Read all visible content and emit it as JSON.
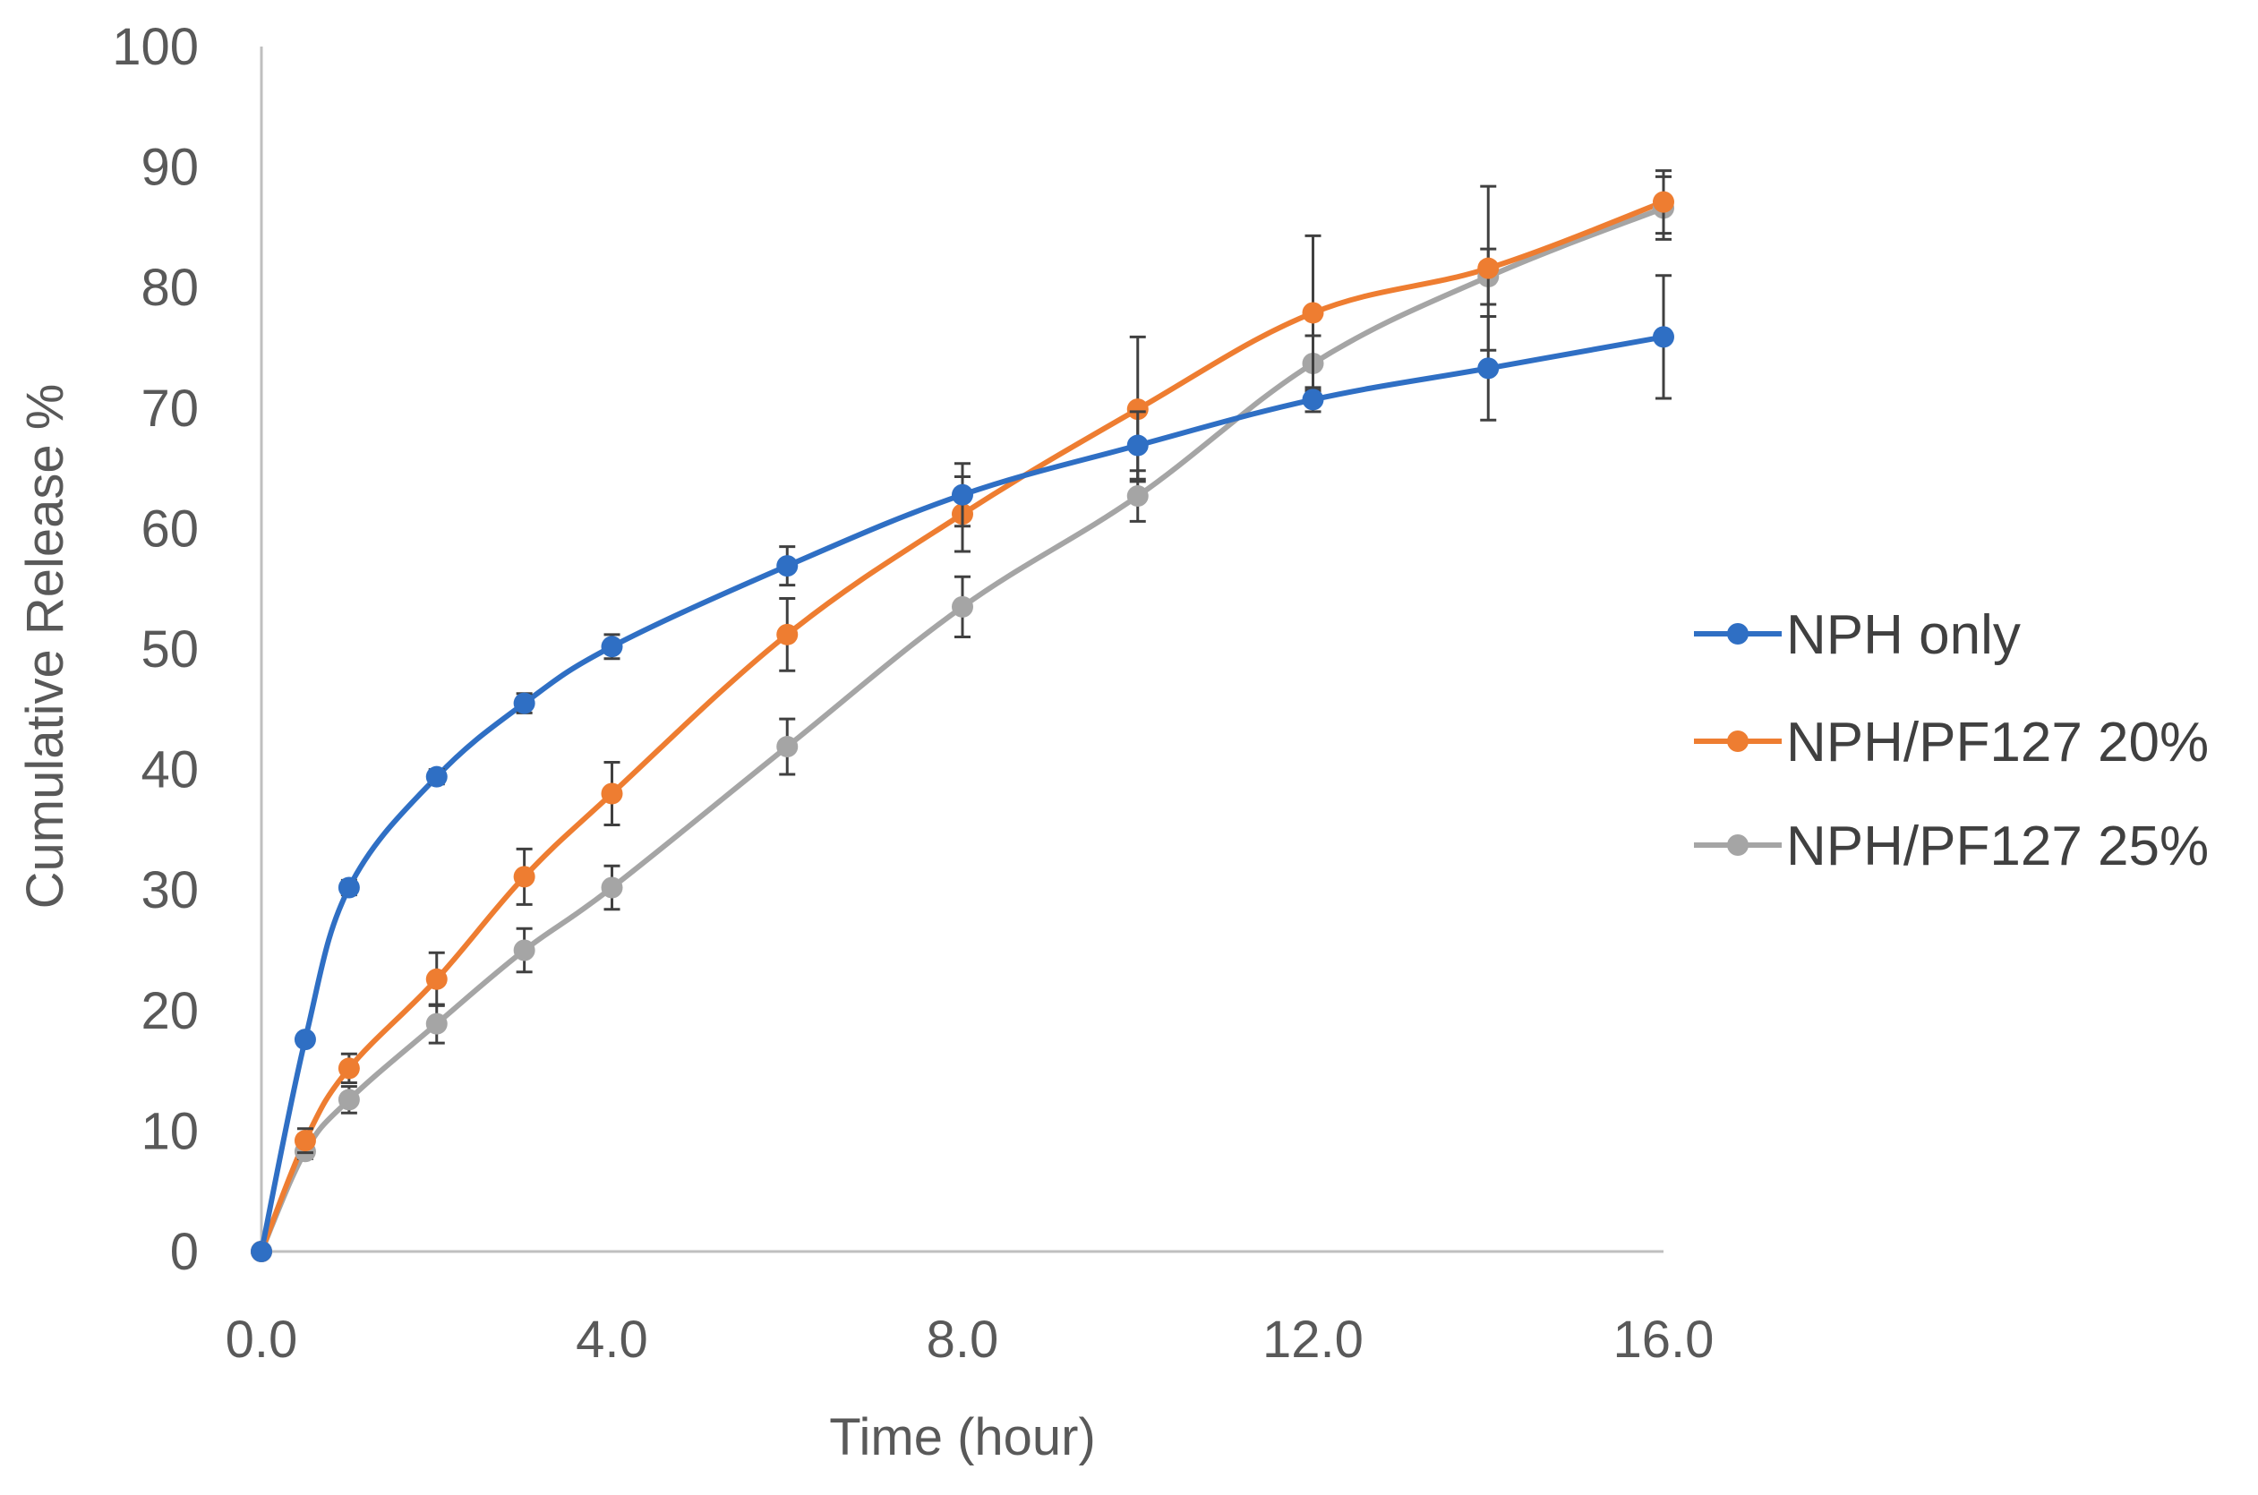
{
  "chart_data": {
    "type": "line",
    "title": "",
    "xlabel": "Time (hour)",
    "ylabel": "Cumulative Release %",
    "xlim": [
      0,
      16
    ],
    "ylim": [
      0,
      100
    ],
    "x_ticks": [
      0,
      4,
      8,
      12,
      16
    ],
    "x_tick_labels": [
      "0.0",
      "4.0",
      "8.0",
      "12.0",
      "16.0"
    ],
    "y_ticks": [
      0,
      10,
      20,
      30,
      40,
      50,
      60,
      70,
      80,
      90,
      100
    ],
    "y_tick_labels": [
      "0",
      "10",
      "20",
      "30",
      "40",
      "50",
      "60",
      "70",
      "80",
      "90",
      "100"
    ],
    "grid": false,
    "legend_position": "right",
    "x": [
      0,
      0.5,
      1,
      2,
      3,
      4,
      6,
      8,
      10,
      12,
      14,
      16
    ],
    "series": [
      {
        "name": "NPH only",
        "color": "#2F6FC4",
        "values": [
          0,
          17.6,
          30.2,
          39.4,
          45.5,
          50.2,
          56.9,
          62.8,
          66.9,
          70.7,
          73.3,
          75.9
        ],
        "errors": [
          0,
          0.4,
          0.6,
          0.6,
          0.8,
          1.0,
          1.6,
          2.6,
          2.8,
          1.0,
          4.3,
          5.1
        ]
      },
      {
        "name": "NPH/PF127 20%",
        "color": "#EE7D31",
        "values": [
          0,
          9.2,
          15.2,
          22.6,
          31.1,
          38.0,
          51.2,
          61.2,
          69.9,
          77.9,
          81.6,
          87.1
        ],
        "errors": [
          0,
          1.0,
          1.2,
          2.2,
          2.3,
          2.6,
          3.0,
          3.1,
          6.0,
          6.4,
          6.8,
          2.6
        ]
      },
      {
        "name": "NPH/PF127 25%",
        "color": "#A5A5A5",
        "values": [
          0,
          8.3,
          12.6,
          18.9,
          25.0,
          30.2,
          41.9,
          53.5,
          62.7,
          73.7,
          80.9,
          86.6
        ],
        "errors": [
          0,
          0.6,
          1.1,
          1.6,
          1.8,
          1.8,
          2.3,
          2.5,
          2.1,
          2.3,
          2.3,
          2.6
        ]
      }
    ]
  }
}
